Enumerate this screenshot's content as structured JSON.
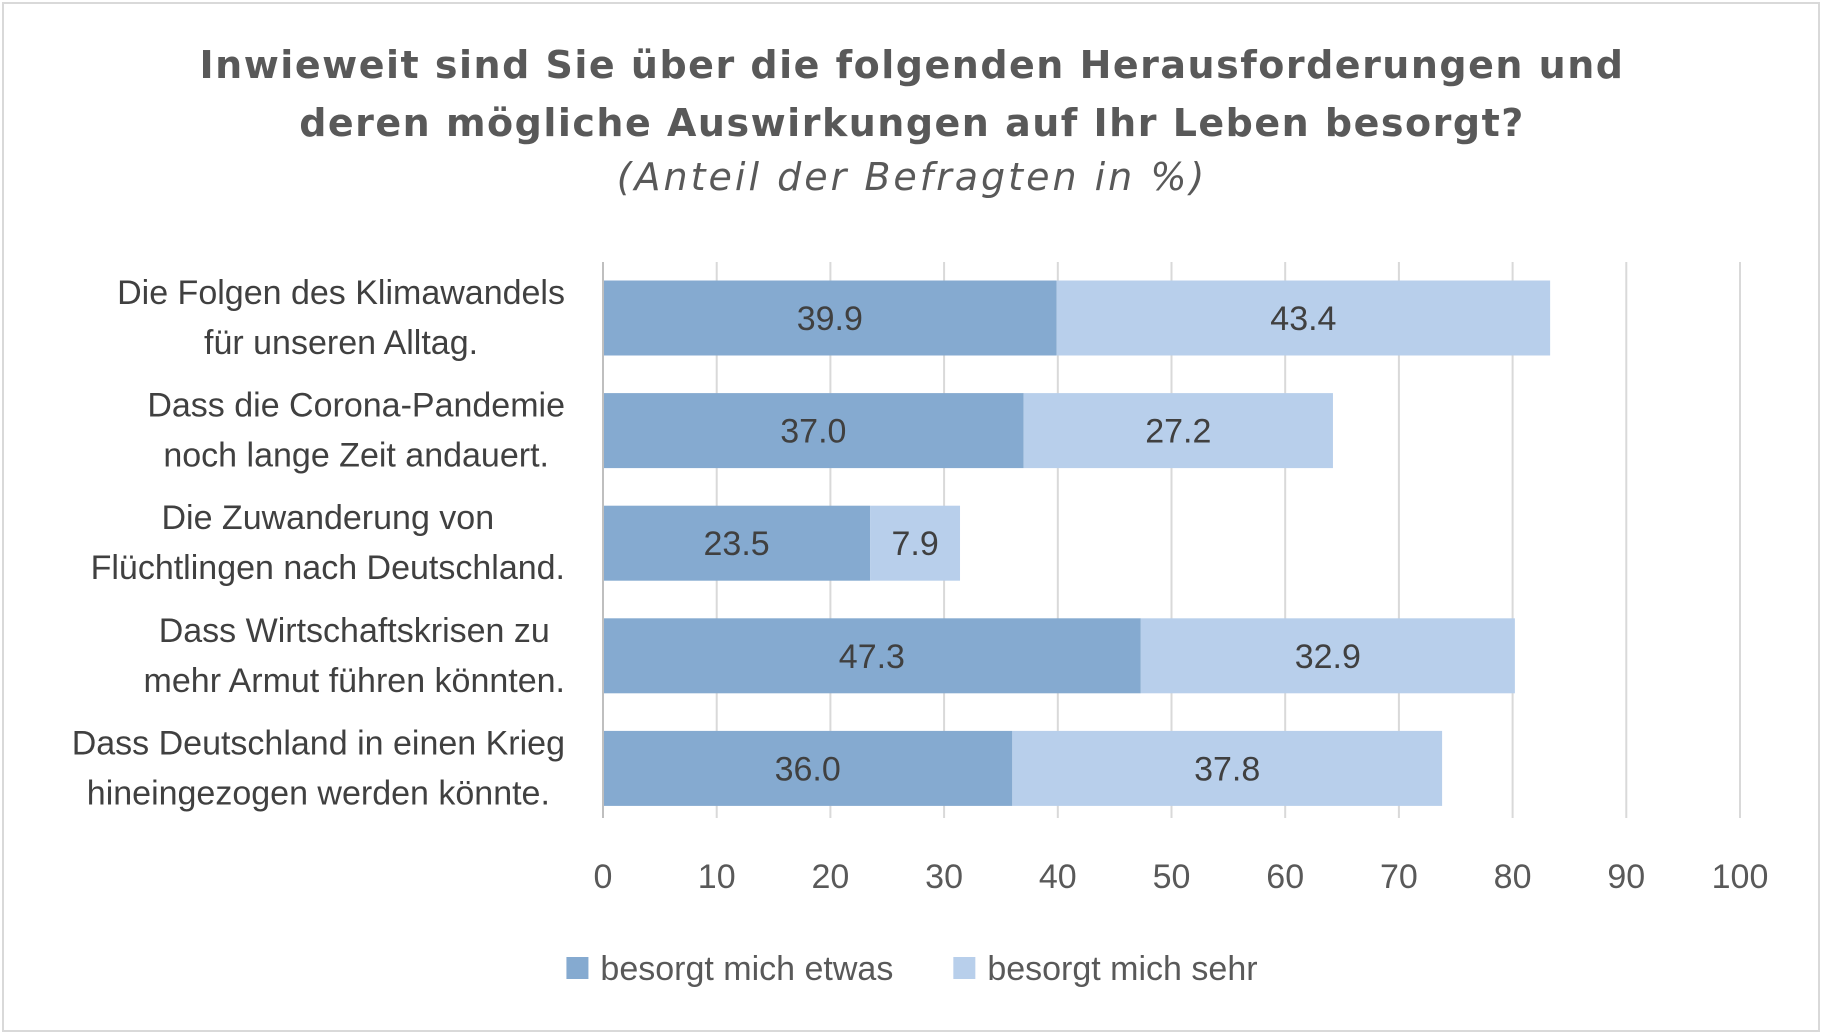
{
  "chart_data": {
    "type": "bar",
    "orientation": "horizontal",
    "stacked": true,
    "title_lines": [
      "Inwieweit sind Sie über die folgenden Herausforderungen und",
      "deren mögliche Auswirkungen auf Ihr Leben besorgt?"
    ],
    "subtitle": "(Anteil der Befragten in %)",
    "categories": [
      [
        "Die Folgen des Klimawandels",
        "für unseren Alltag."
      ],
      [
        "Dass die Corona-Pandemie",
        "noch lange Zeit andauert."
      ],
      [
        "Die Zuwanderung von",
        "Flüchtlingen nach Deutschland."
      ],
      [
        "Dass Wirtschaftskrisen zu",
        "mehr Armut führen könnten."
      ],
      [
        "Dass Deutschland in einen Krieg",
        "hineingezogen werden könnte."
      ]
    ],
    "series": [
      {
        "name": "besorgt mich etwas",
        "color": "#85aad0",
        "values": [
          39.9,
          37.0,
          23.5,
          47.3,
          36.0
        ],
        "labels": [
          "39.9",
          "37.0",
          "23.5",
          "47.3",
          "36.0"
        ]
      },
      {
        "name": "besorgt mich sehr",
        "color": "#b8cfeb",
        "values": [
          43.4,
          27.2,
          7.9,
          32.9,
          37.8
        ],
        "labels": [
          "43.4",
          "27.2",
          "7.9",
          "32.9",
          "37.8"
        ]
      }
    ],
    "xlim": [
      0,
      100
    ],
    "xticks": [
      "0",
      "10",
      "20",
      "30",
      "40",
      "50",
      "60",
      "70",
      "80",
      "90",
      "100"
    ],
    "grid": true,
    "legend_position": "bottom"
  }
}
